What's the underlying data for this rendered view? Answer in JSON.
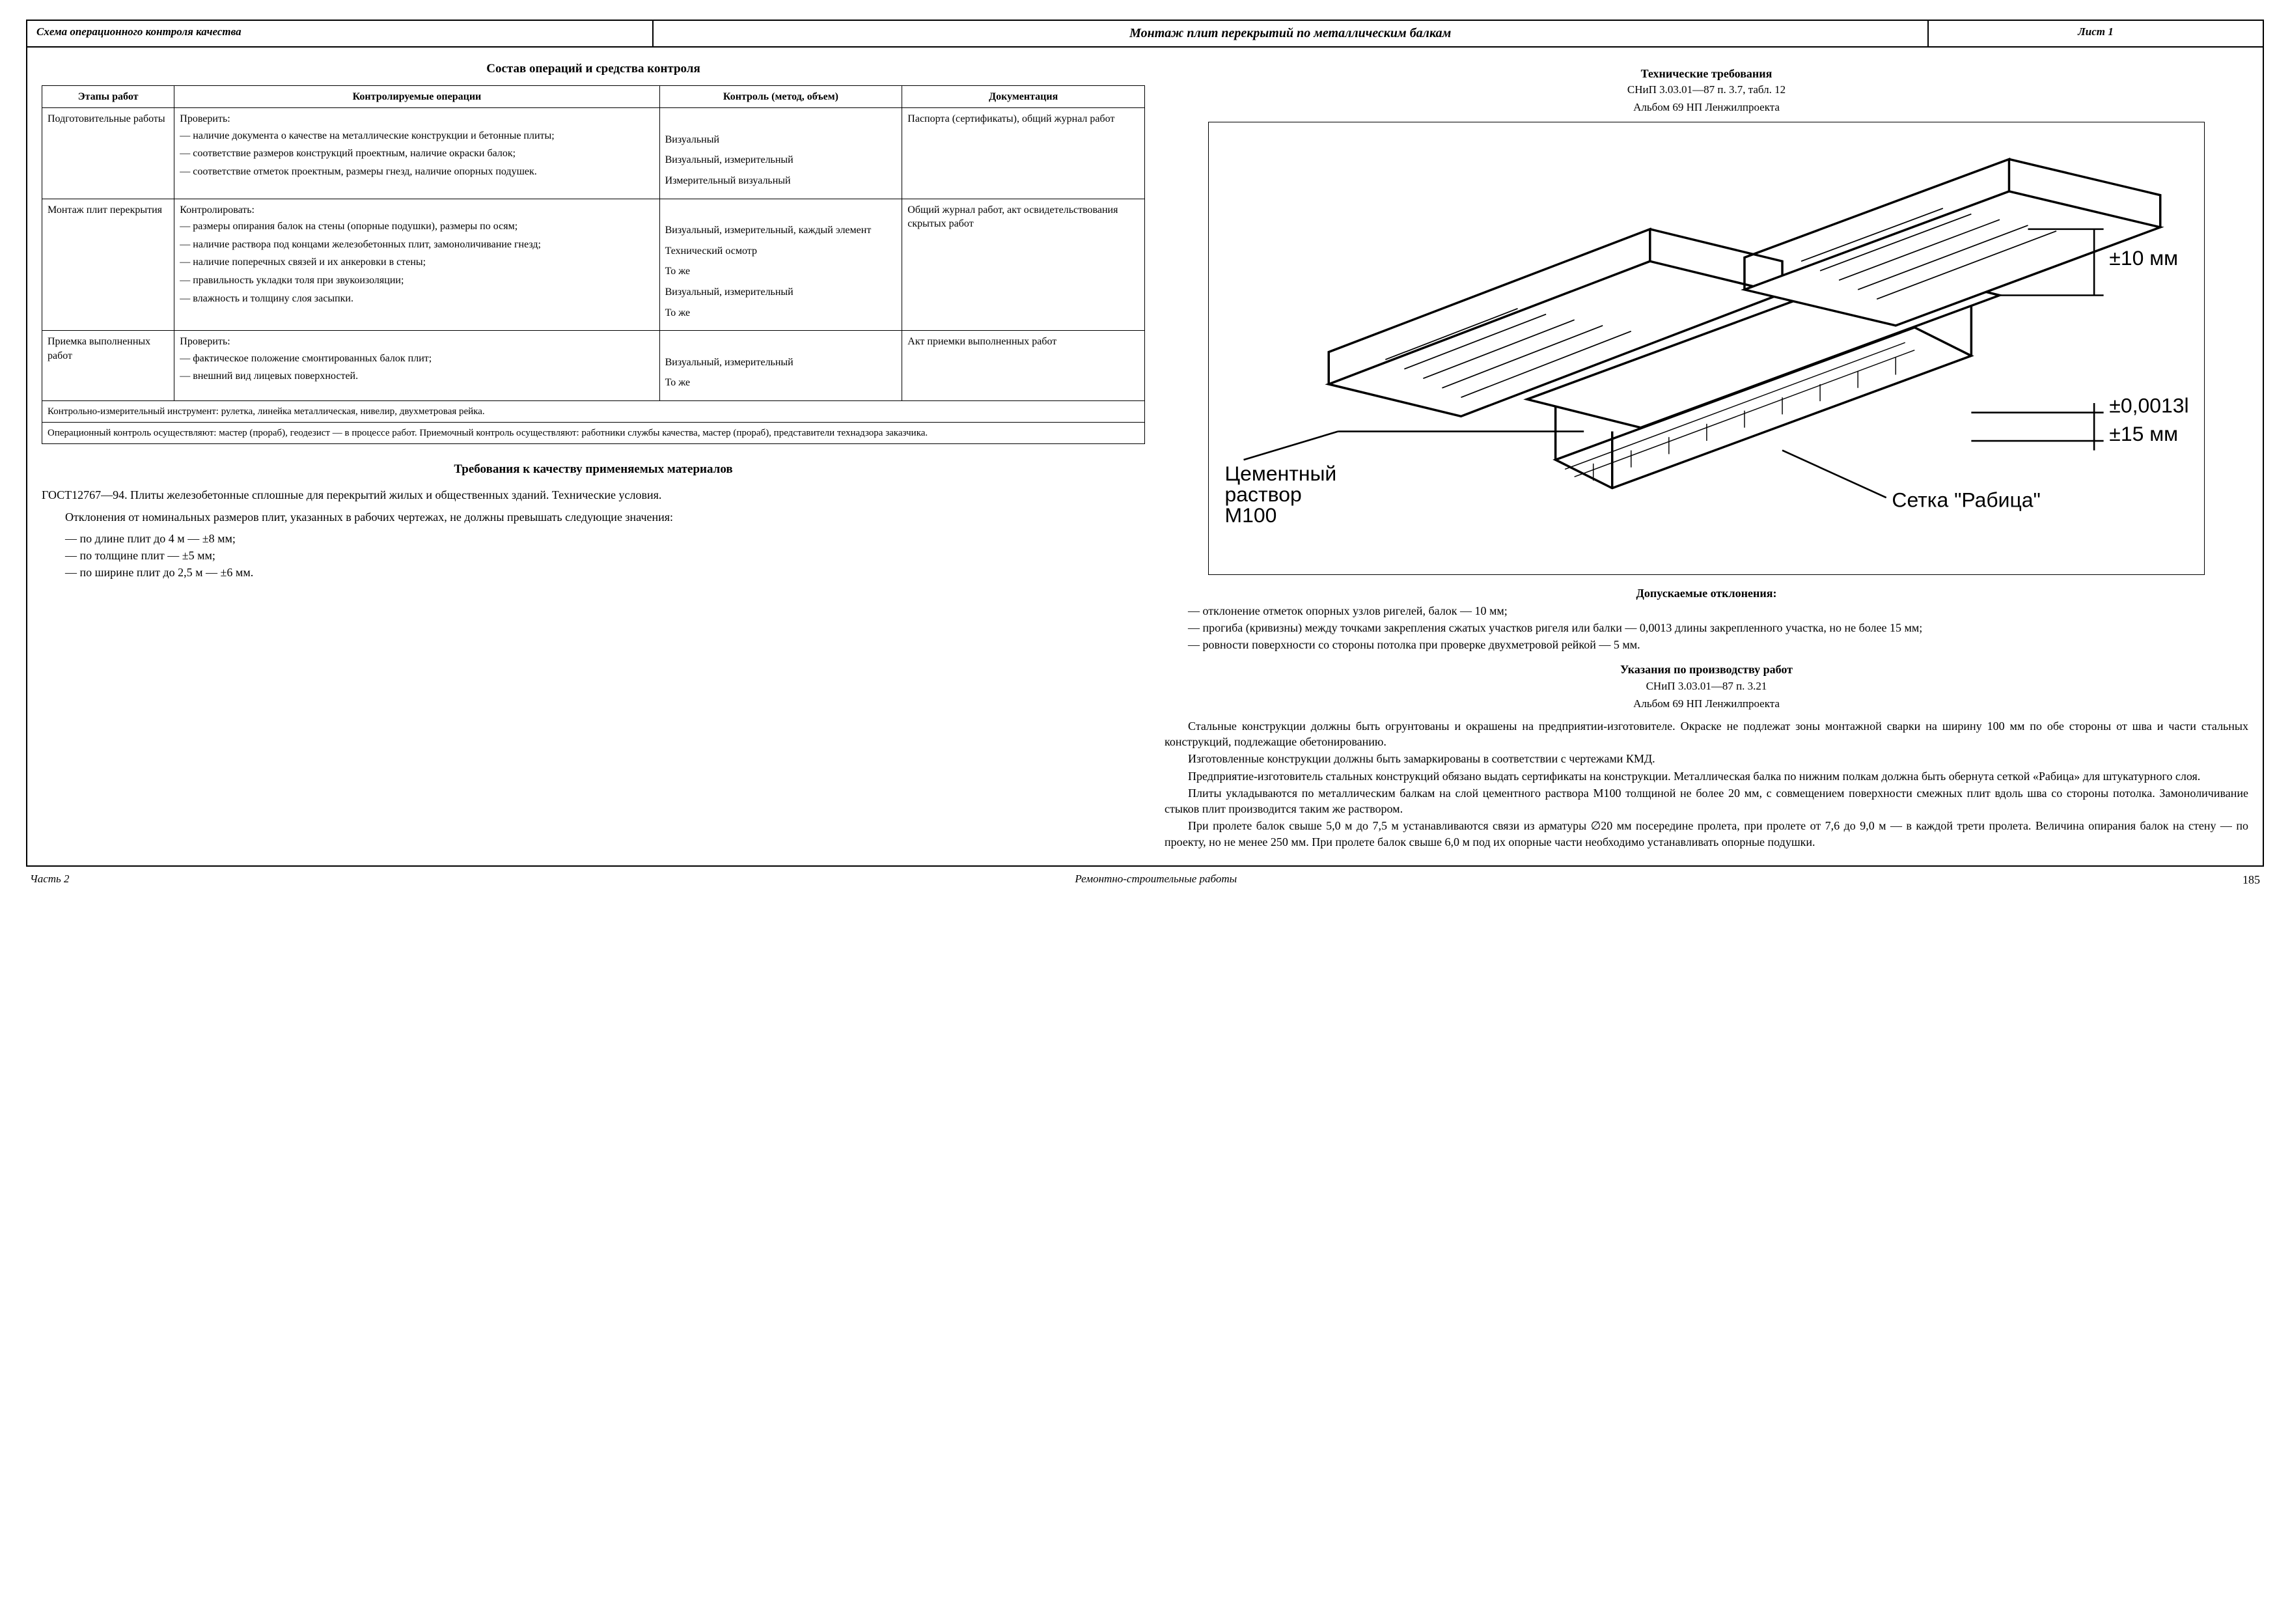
{
  "header": {
    "left": "Схема операционного контроля качества",
    "center": "Монтаж плит перекрытий по металлическим балкам",
    "right": "Лист 1"
  },
  "left": {
    "section_title": "Состав операций и средства контроля",
    "table": {
      "headers": {
        "stage": "Этапы работ",
        "ops": "Контролируемые операции",
        "ctrl": "Контроль (метод, объем)",
        "doc": "Документация"
      },
      "rows": [
        {
          "stage": "Подготовительные работы",
          "ops_lead": "Проверить:",
          "ops_items": [
            "— наличие документа о качестве на металлические конструкции и бетонные плиты;",
            "— соответствие размеров конструкций проектным, наличие окраски балок;",
            "— соответствие отметок проектным, размеры гнезд, наличие опорных подушек."
          ],
          "ctrl_items": [
            "Визуальный",
            "Визуальный, измерительный",
            "Измерительный визуальный"
          ],
          "doc": "Паспорта (сертификаты), общий журнал работ"
        },
        {
          "stage": "Монтаж плит перекрытия",
          "ops_lead": "Контролировать:",
          "ops_items": [
            "— размеры опирания балок на стены (опорные подушки), размеры по осям;",
            "— наличие раствора под концами железобетонных плит, замоноличивание гнезд;",
            "— наличие поперечных связей и их анкеровки в стены;",
            "— правильность укладки толя при звукоизоляции;",
            "— влажность и толщину слоя засыпки."
          ],
          "ctrl_items": [
            "Визуальный, измерительный, каждый элемент",
            "Технический осмотр",
            "То же",
            "Визуальный, измерительный",
            "То же"
          ],
          "doc": "Общий журнал работ, акт освидетельствования скрытых работ"
        },
        {
          "stage": "Приемка выполненных работ",
          "ops_lead": "Проверить:",
          "ops_items": [
            "— фактическое положение смонтированных балок плит;",
            "— внешний вид лицевых поверхностей."
          ],
          "ctrl_items": [
            "Визуальный, измерительный",
            "То же"
          ],
          "doc": "Акт приемки выполненных работ"
        }
      ],
      "note1": "Контрольно-измерительный инструмент: рулетка, линейка металлическая, нивелир, двухметровая рейка.",
      "note2": "Операционный контроль осуществляют: мастер (прораб), геодезист — в процессе работ. Приемочный контроль осуществляют: работники службы качества, мастер (прораб), представители технадзора заказчика."
    },
    "materials_title": "Требования к качеству применяемых материалов",
    "gost": "ГОСТ12767—94. Плиты железобетонные сплошные для перекрытий жилых и общественных зданий. Технические условия.",
    "tolerances_intro": "Отклонения от номинальных размеров плит, указанных в рабочих чертежах, не должны превышать следующие значения:",
    "tolerances": [
      "— по длине плит до 4 м — ±8 мм;",
      "— по толщине плит — ±5 мм;",
      "— по ширине плит до 2,5 м — ±6 мм."
    ]
  },
  "right": {
    "tech_title": "Технические требования",
    "tech_ref1": "СНиП 3.03.01—87 п. 3.7, табл. 12",
    "tech_ref2": "Альбом 69 НП Ленжилпроекта",
    "diagram": {
      "label_mortar": "Цементный раствор М100",
      "label_mesh": "Сетка \"Рабица\"",
      "tol1": "±10 мм",
      "tol2": "±0,0013l",
      "tol3": "±15 мм"
    },
    "deviations_title": "Допускаемые отклонения:",
    "deviations": [
      "— отклонение отметок опорных узлов ригелей, балок — 10 мм;",
      "— прогиба (кривизны) между точками закрепления сжатых участков ригеля или балки — 0,0013 длины закрепленного участка, но не более 15 мм;",
      "— ровности поверхности со стороны потолка при проверке двухметровой рейкой — 5 мм."
    ],
    "work_title": "Указания по производству работ",
    "work_ref1": "СНиП 3.03.01—87 п. 3.21",
    "work_ref2": "Альбом 69 НП Ленжилпроекта",
    "paragraphs": [
      "Стальные конструкции должны быть огрунтованы и окрашены на предприятии-изготовителе. Окраске не подлежат зоны монтажной сварки на ширину 100 мм по обе стороны от шва и части стальных конструкций, подлежащие обетонированию.",
      "Изготовленные конструкции должны быть замаркированы в соответствии с чертежами КМД.",
      "Предприятие-изготовитель стальных конструкций обязано выдать сертификаты на конструкции. Металлическая балка по нижним полкам должна быть обернута сеткой «Рабица» для штукатурного слоя.",
      "Плиты укладываются по металлическим балкам на слой цементного раствора М100 толщиной не более 20 мм, с совмещением поверхности смежных плит вдоль шва со стороны потолка. Замоноличивание стыков плит производится таким же раствором.",
      "При пролете балок свыше 5,0 м до 7,5 м устанавливаются связи из арматуры ∅20 мм посередине пролета, при пролете от 7,6 до 9,0 м — в каждой трети пролета. Величина опирания балок на стену — по проекту, но не менее 250 мм. При пролете балок свыше 6,0 м под их опорные части необходимо устанавливать опорные подушки."
    ]
  },
  "footer": {
    "part": "Часть 2",
    "title": "Ремонтно-строительные работы",
    "page": "185"
  }
}
